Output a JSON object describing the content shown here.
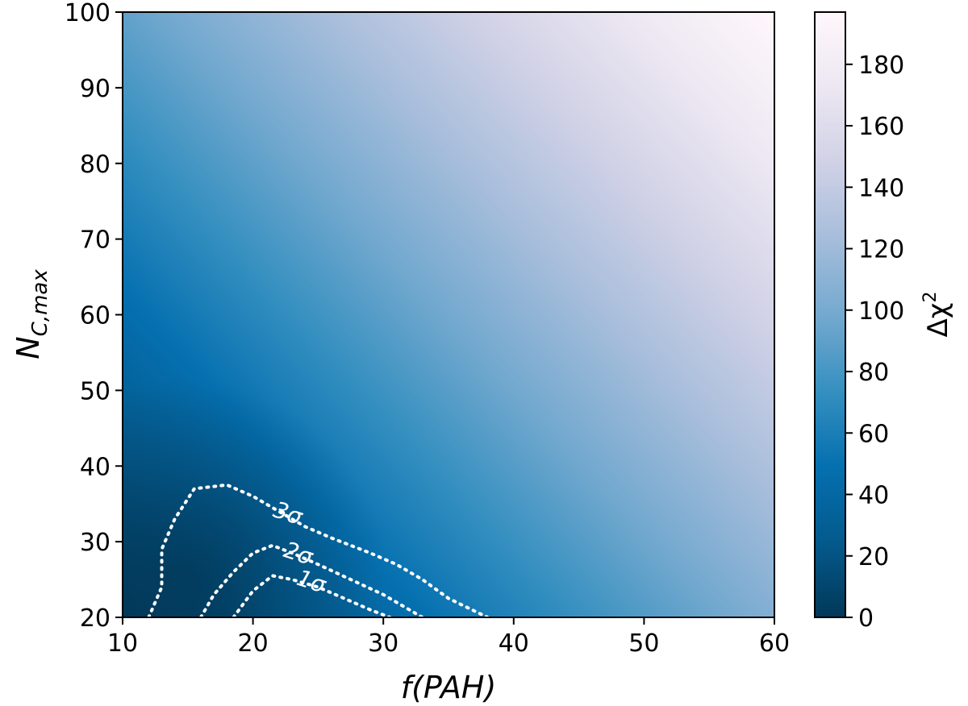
{
  "chart_data": {
    "type": "heatmap",
    "title": "",
    "xlabel": "f(PAH)",
    "ylabel": "N_C,max",
    "xlim": [
      10,
      60
    ],
    "ylim": [
      20,
      100
    ],
    "x_ticks": [
      10,
      20,
      30,
      40,
      50,
      60
    ],
    "y_ticks": [
      20,
      30,
      40,
      50,
      60,
      70,
      80,
      90,
      100
    ],
    "colorbar": {
      "label": "Δχ²",
      "range": [
        0,
        197
      ],
      "ticks": [
        0,
        20,
        40,
        60,
        80,
        100,
        120,
        140,
        160,
        180
      ],
      "colormap": [
        "#023858",
        "#045a8d",
        "#0570b0",
        "#3690c0",
        "#74a9cf",
        "#a6bddb",
        "#d0d1e6",
        "#ece7f2",
        "#fff7fb"
      ]
    },
    "contours": [
      {
        "label": "1σ",
        "points": [
          [
            18.5,
            20
          ],
          [
            20,
            23.5
          ],
          [
            21.5,
            25.5
          ],
          [
            23,
            25
          ],
          [
            25,
            24
          ],
          [
            27,
            22.5
          ],
          [
            29,
            21
          ],
          [
            30.5,
            20
          ]
        ]
      },
      {
        "label": "2σ",
        "points": [
          [
            16,
            20
          ],
          [
            17,
            23
          ],
          [
            18.5,
            26
          ],
          [
            20,
            28.5
          ],
          [
            21.5,
            29.5
          ],
          [
            23,
            28.5
          ],
          [
            25,
            27
          ],
          [
            27.5,
            25
          ],
          [
            30,
            23
          ],
          [
            32,
            21
          ],
          [
            33,
            20
          ]
        ]
      },
      {
        "label": "3σ",
        "points": [
          [
            12,
            20
          ],
          [
            13,
            24
          ],
          [
            13,
            29
          ],
          [
            14,
            33
          ],
          [
            15.5,
            37
          ],
          [
            18,
            37.5
          ],
          [
            20,
            36
          ],
          [
            22,
            34
          ],
          [
            24,
            32
          ],
          [
            26,
            30.5
          ],
          [
            29,
            28.5
          ],
          [
            31,
            27
          ],
          [
            33,
            25
          ],
          [
            35,
            22.5
          ],
          [
            38,
            20
          ]
        ]
      }
    ],
    "contour_label_positions": [
      {
        "label": "3σ",
        "x": 22.5,
        "y": 32.8
      },
      {
        "label": "2σ",
        "x": 23.3,
        "y": 27.5
      },
      {
        "label": "1σ",
        "x": 24.3,
        "y": 23.8
      }
    ]
  }
}
